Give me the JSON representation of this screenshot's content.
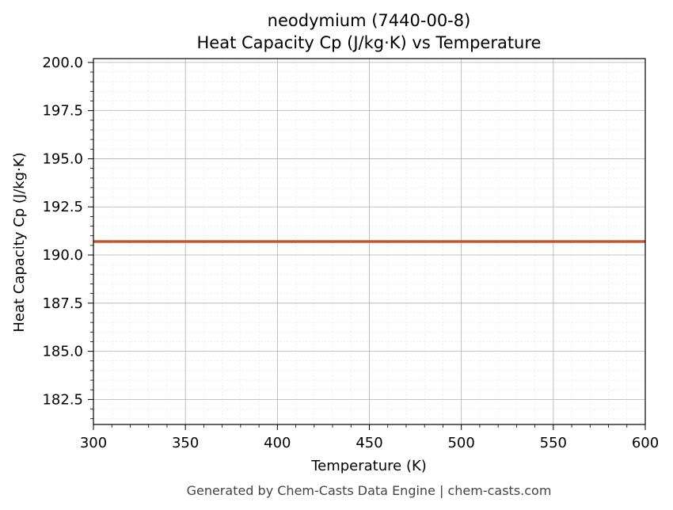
{
  "chart_data": {
    "type": "line",
    "title": "neodymium (7440-00-8)",
    "subtitle": "Heat Capacity Cp (J/kg·K) vs Temperature",
    "xlabel": "Temperature (K)",
    "ylabel": "Heat Capacity Cp (J/kg·K)",
    "xlim": [
      300,
      600
    ],
    "ylim": [
      181.2,
      200.2
    ],
    "x_ticks": [
      300,
      350,
      400,
      450,
      500,
      550,
      600
    ],
    "x_tick_labels": [
      "300",
      "350",
      "400",
      "450",
      "500",
      "550",
      "600"
    ],
    "y_ticks": [
      182.5,
      185.0,
      187.5,
      190.0,
      192.5,
      195.0,
      197.5,
      200.0
    ],
    "y_tick_labels": [
      "182.5",
      "185.0",
      "187.5",
      "190.0",
      "192.5",
      "195.0",
      "197.5",
      "200.0"
    ],
    "grid": true,
    "minor_grid": true,
    "series": [
      {
        "x": [
          300,
          350,
          400,
          450,
          500,
          550,
          600
        ],
        "y": [
          190.7,
          190.7,
          190.7,
          190.7,
          190.7,
          190.7,
          190.7
        ],
        "color": "#c8562a"
      }
    ]
  },
  "footer": "Generated by Chem-Casts Data Engine | chem-casts.com"
}
